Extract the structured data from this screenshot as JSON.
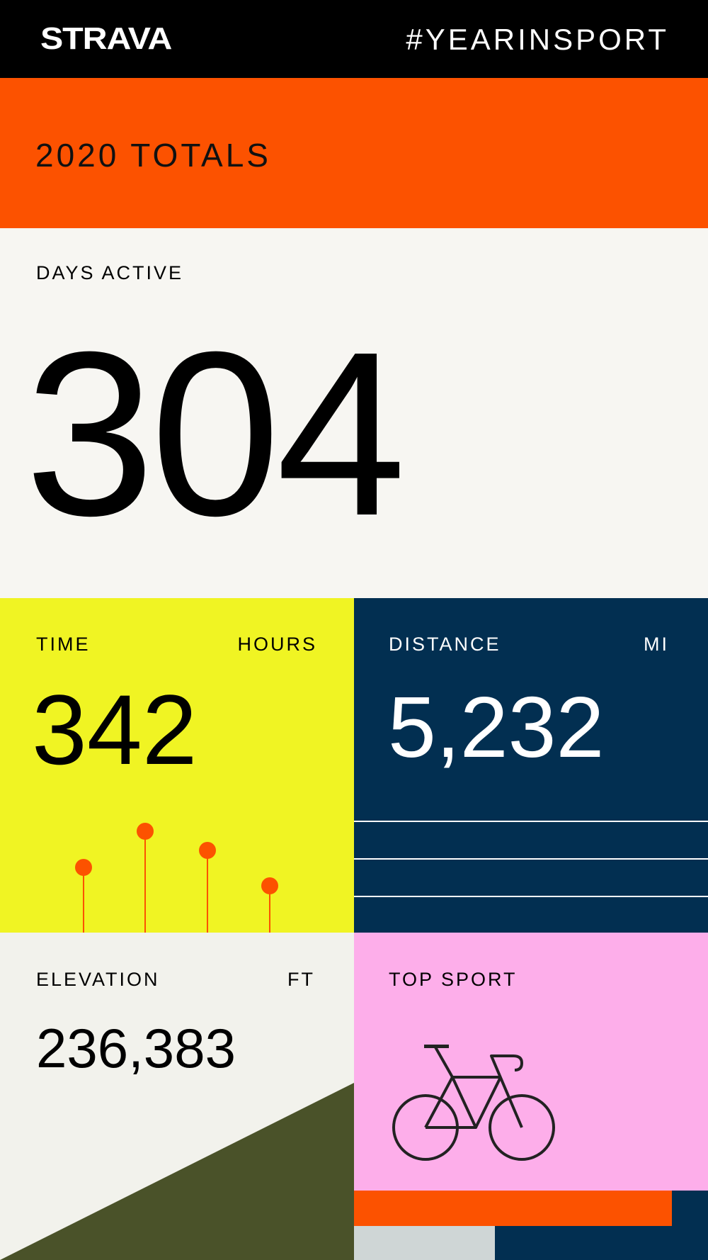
{
  "header": {
    "logo": "STRAVA",
    "hashtag": "#YEARINSPORT"
  },
  "totals": {
    "title": "2020 TOTALS"
  },
  "days_active": {
    "label": "DAYS ACTIVE",
    "value": "304"
  },
  "time": {
    "label": "TIME",
    "unit": "HOURS",
    "value": "342"
  },
  "distance": {
    "label": "DISTANCE",
    "unit": "MI",
    "value": "5,232"
  },
  "elevation": {
    "label": "ELEVATION",
    "unit": "FT",
    "value": "236,383"
  },
  "top_sport": {
    "label": "TOP SPORT",
    "icon": "bicycle-icon"
  },
  "colors": {
    "orange": "#fc5200",
    "yellow": "#f0f423",
    "navy": "#022f51",
    "pink": "#fdaeea",
    "olive": "#4a5229",
    "cream": "#f7f6f2"
  }
}
